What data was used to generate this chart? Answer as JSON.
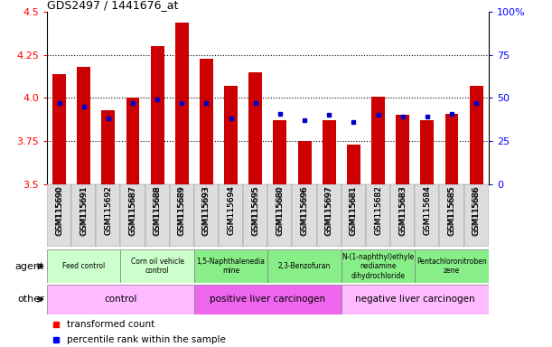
{
  "title": "GDS2497 / 1441676_at",
  "samples": [
    "GSM115690",
    "GSM115691",
    "GSM115692",
    "GSM115687",
    "GSM115688",
    "GSM115689",
    "GSM115693",
    "GSM115694",
    "GSM115695",
    "GSM115680",
    "GSM115696",
    "GSM115697",
    "GSM115681",
    "GSM115682",
    "GSM115683",
    "GSM115684",
    "GSM115685",
    "GSM115686"
  ],
  "bar_values": [
    4.14,
    4.18,
    3.93,
    4.0,
    4.3,
    4.44,
    4.23,
    4.07,
    4.15,
    3.87,
    3.75,
    3.87,
    3.73,
    4.01,
    3.9,
    3.87,
    3.91,
    4.07
  ],
  "percentile_values": [
    3.97,
    3.95,
    3.88,
    3.97,
    3.99,
    3.97,
    3.97,
    3.88,
    3.97,
    3.91,
    3.87,
    3.9,
    3.86,
    3.9,
    3.89,
    3.89,
    3.91,
    3.97
  ],
  "bar_color": "#cc0000",
  "percentile_color": "#0000cc",
  "ylim_left": [
    3.5,
    4.5
  ],
  "ylim_right": [
    0,
    100
  ],
  "yticks_left": [
    3.5,
    3.75,
    4.0,
    4.25,
    4.5
  ],
  "yticks_right": [
    0,
    25,
    50,
    75,
    100
  ],
  "agent_groups": [
    {
      "label": "Feed control",
      "start": 0,
      "end": 3,
      "color": "#ccffcc"
    },
    {
      "label": "Corn oil vehicle\ncontrol",
      "start": 3,
      "end": 6,
      "color": "#ccffcc"
    },
    {
      "label": "1,5-Naphthalenedia\nmine",
      "start": 6,
      "end": 9,
      "color": "#88ee88"
    },
    {
      "label": "2,3-Benzofuran",
      "start": 9,
      "end": 12,
      "color": "#88ee88"
    },
    {
      "label": "N-(1-naphthyl)ethyle\nnediamine\ndihydrochloride",
      "start": 12,
      "end": 15,
      "color": "#88ee88"
    },
    {
      "label": "Pentachloronitroben\nzene",
      "start": 15,
      "end": 18,
      "color": "#88ee88"
    }
  ],
  "other_groups": [
    {
      "label": "control",
      "start": 0,
      "end": 6,
      "color": "#ffbbff"
    },
    {
      "label": "positive liver carcinogen",
      "start": 6,
      "end": 12,
      "color": "#ee66ee"
    },
    {
      "label": "negative liver carcinogen",
      "start": 12,
      "end": 18,
      "color": "#ffbbff"
    }
  ],
  "hgrid_vals": [
    3.75,
    4.0,
    4.25
  ],
  "chart_bg": "#ffffff"
}
